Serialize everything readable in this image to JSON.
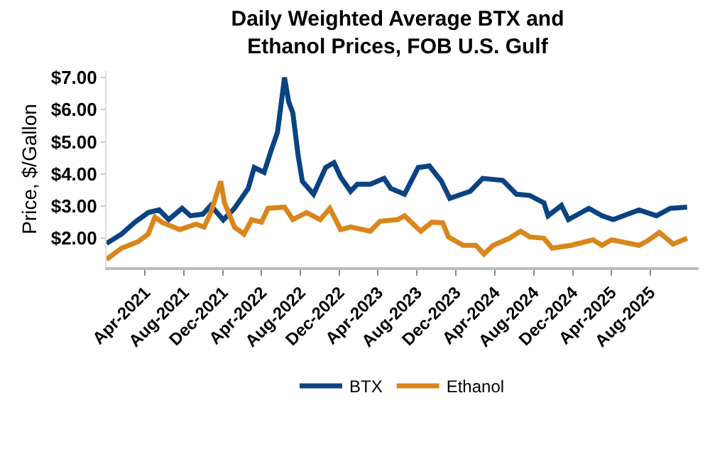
{
  "chart_data": {
    "type": "line",
    "title": "Daily Weighted Average BTX and\nEthanol Prices, FOB U.S. Gulf",
    "ylabel": "Price, $/Gallon",
    "xlim": [
      "2020-12-01",
      "2025-12-31"
    ],
    "ylim": [
      1.1,
      7.2
    ],
    "xticks": [
      {
        "value": "2021-04-01",
        "label": "Apr-2021"
      },
      {
        "value": "2021-08-01",
        "label": "Aug-2021"
      },
      {
        "value": "2021-12-01",
        "label": "Dec-2021"
      },
      {
        "value": "2022-04-01",
        "label": "Apr-2022"
      },
      {
        "value": "2022-08-01",
        "label": "Aug-2022"
      },
      {
        "value": "2022-12-01",
        "label": "Dec-2022"
      },
      {
        "value": "2023-04-01",
        "label": "Apr-2023"
      },
      {
        "value": "2023-08-01",
        "label": "Aug-2023"
      },
      {
        "value": "2023-12-01",
        "label": "Dec-2023"
      },
      {
        "value": "2024-04-01",
        "label": "Apr-2024"
      },
      {
        "value": "2024-08-01",
        "label": "Aug-2024"
      },
      {
        "value": "2024-12-01",
        "label": "Dec-2024"
      },
      {
        "value": "2025-04-01",
        "label": "Apr-2025"
      },
      {
        "value": "2025-08-01",
        "label": "Aug-2025"
      }
    ],
    "yticks": [
      {
        "value": 2,
        "label": "$2.00"
      },
      {
        "value": 3,
        "label": "$3.00"
      },
      {
        "value": 4,
        "label": "$4.00"
      },
      {
        "value": 5,
        "label": "$5.00"
      },
      {
        "value": 6,
        "label": "$6.00"
      },
      {
        "value": 7,
        "label": "$7.00"
      }
    ],
    "grid": false,
    "legend": "bottom",
    "marker": "none",
    "line_style": "solid",
    "series": [
      {
        "name": "BTX",
        "color": "#0b4382",
        "x": [
          "2020-12-01",
          "2021-01-17",
          "2021-02-28",
          "2021-04-11",
          "2021-05-15",
          "2021-06-14",
          "2021-07-26",
          "2021-08-21",
          "2021-09-29",
          "2021-10-24",
          "2021-12-02",
          "2022-01-06",
          "2022-02-18",
          "2022-03-09",
          "2022-04-09",
          "2022-04-30",
          "2022-05-21",
          "2022-06-12",
          "2022-06-25",
          "2022-07-08",
          "2022-07-25",
          "2022-08-07",
          "2022-09-11",
          "2022-10-19",
          "2022-11-14",
          "2022-12-05",
          "2023-01-05",
          "2023-01-26",
          "2023-03-08",
          "2023-04-20",
          "2023-05-11",
          "2023-06-23",
          "2023-08-05",
          "2023-09-09",
          "2023-10-17",
          "2023-11-12",
          "2023-12-20",
          "2024-01-15",
          "2024-02-23",
          "2024-04-26",
          "2024-06-08",
          "2024-07-20",
          "2024-09-02",
          "2024-09-15",
          "2024-10-27",
          "2024-11-18",
          "2025-01-21",
          "2025-03-03",
          "2025-04-07",
          "2025-06-27",
          "2025-08-21",
          "2025-10-03",
          "2025-11-25"
        ],
        "values": [
          1.84,
          2.13,
          2.5,
          2.8,
          2.88,
          2.58,
          2.93,
          2.7,
          2.75,
          3.02,
          2.57,
          2.93,
          3.55,
          4.2,
          4.05,
          4.7,
          5.3,
          7.0,
          6.25,
          5.9,
          4.55,
          3.77,
          3.37,
          4.2,
          4.35,
          3.9,
          3.46,
          3.68,
          3.68,
          3.86,
          3.55,
          3.37,
          4.2,
          4.25,
          3.77,
          3.24,
          3.37,
          3.46,
          3.86,
          3.8,
          3.37,
          3.33,
          3.1,
          2.7,
          3.02,
          2.58,
          2.93,
          2.7,
          2.58,
          2.88,
          2.7,
          2.93,
          2.97
        ]
      },
      {
        "name": "Ethanol",
        "color": "#d9861c",
        "x": [
          "2020-12-01",
          "2021-01-17",
          "2021-03-11",
          "2021-04-11",
          "2021-05-02",
          "2021-05-23",
          "2021-07-18",
          "2021-09-08",
          "2021-10-03",
          "2021-10-24",
          "2021-11-24",
          "2021-12-06",
          "2022-01-06",
          "2022-02-05",
          "2022-03-01",
          "2022-04-01",
          "2022-04-21",
          "2022-06-12",
          "2022-07-08",
          "2022-08-20",
          "2022-10-02",
          "2022-11-01",
          "2022-12-05",
          "2023-01-05",
          "2023-03-08",
          "2023-04-07",
          "2023-06-02",
          "2023-06-23",
          "2023-08-13",
          "2023-09-17",
          "2023-10-21",
          "2023-11-08",
          "2023-12-24",
          "2024-02-02",
          "2024-02-27",
          "2024-03-27",
          "2024-05-17",
          "2024-06-21",
          "2024-07-20",
          "2024-09-02",
          "2024-09-28",
          "2024-11-26",
          "2025-02-03",
          "2025-03-03",
          "2025-04-02",
          "2025-06-27",
          "2025-07-22",
          "2025-08-30",
          "2025-10-12",
          "2025-11-25"
        ],
        "values": [
          1.34,
          1.69,
          1.9,
          2.13,
          2.66,
          2.5,
          2.27,
          2.44,
          2.35,
          2.8,
          3.77,
          3.1,
          2.35,
          2.13,
          2.58,
          2.5,
          2.93,
          2.97,
          2.58,
          2.8,
          2.58,
          2.93,
          2.27,
          2.35,
          2.22,
          2.53,
          2.58,
          2.7,
          2.22,
          2.5,
          2.48,
          2.04,
          1.78,
          1.78,
          1.51,
          1.78,
          2.0,
          2.22,
          2.04,
          2.0,
          1.69,
          1.78,
          1.95,
          1.78,
          1.95,
          1.78,
          1.91,
          2.18,
          1.82,
          2.0
        ]
      }
    ]
  }
}
